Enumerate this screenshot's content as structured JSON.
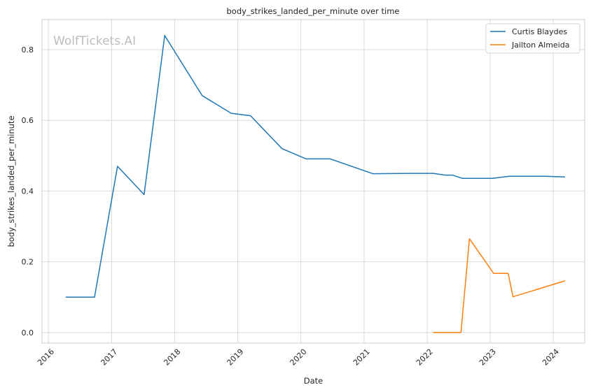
{
  "chart_data": {
    "type": "line",
    "title": "body_strikes_landed_per_minute over time",
    "xlabel": "Date",
    "ylabel": "body_strikes_landed_per_minute",
    "watermark": "WolfTickets.AI",
    "x_ticks": [
      "2016",
      "2017",
      "2018",
      "2019",
      "2020",
      "2021",
      "2022",
      "2023",
      "2024"
    ],
    "y_ticks": [
      "0.0",
      "0.2",
      "0.4",
      "0.6",
      "0.8"
    ],
    "xlim": [
      "2015-11-25",
      "2024-07-01"
    ],
    "ylim": [
      -0.03,
      0.885
    ],
    "grid": true,
    "legend_position": "top-right",
    "colors": {
      "Curtis Blaydes": "#1f77b4",
      "Jailton Almeida": "#ff7f0e",
      "grid": "#d9d9d9",
      "frame": "#cccccc"
    },
    "series": [
      {
        "name": "Curtis Blaydes",
        "color": "#1f77b4",
        "points": [
          [
            "2016-04-10",
            0.1
          ],
          [
            "2016-09-24",
            0.1
          ],
          [
            "2017-02-04",
            0.47
          ],
          [
            "2017-07-08",
            0.39
          ],
          [
            "2017-11-04",
            0.84
          ],
          [
            "2018-06-09",
            0.67
          ],
          [
            "2018-11-24",
            0.62
          ],
          [
            "2019-03-16",
            0.613
          ],
          [
            "2019-09-14",
            0.52
          ],
          [
            "2020-02-01",
            0.491
          ],
          [
            "2020-06-20",
            0.491
          ],
          [
            "2021-02-20",
            0.449
          ],
          [
            "2021-09-25",
            0.45
          ],
          [
            "2022-02-05",
            0.45
          ],
          [
            "2022-04-16",
            0.445
          ],
          [
            "2022-05-28",
            0.445
          ],
          [
            "2022-07-23",
            0.436
          ],
          [
            "2023-01-14",
            0.436
          ],
          [
            "2023-04-22",
            0.442
          ],
          [
            "2023-11-18",
            0.442
          ],
          [
            "2024-03-09",
            0.44
          ]
        ]
      },
      {
        "name": "Jailton Almeida",
        "color": "#ff7f0e",
        "points": [
          [
            "2022-02-05",
            0.0
          ],
          [
            "2022-07-16",
            0.0
          ],
          [
            "2022-09-03",
            0.265
          ],
          [
            "2023-01-21",
            0.167
          ],
          [
            "2023-04-15",
            0.167
          ],
          [
            "2023-05-13",
            0.101
          ],
          [
            "2024-03-09",
            0.146
          ]
        ]
      }
    ]
  }
}
